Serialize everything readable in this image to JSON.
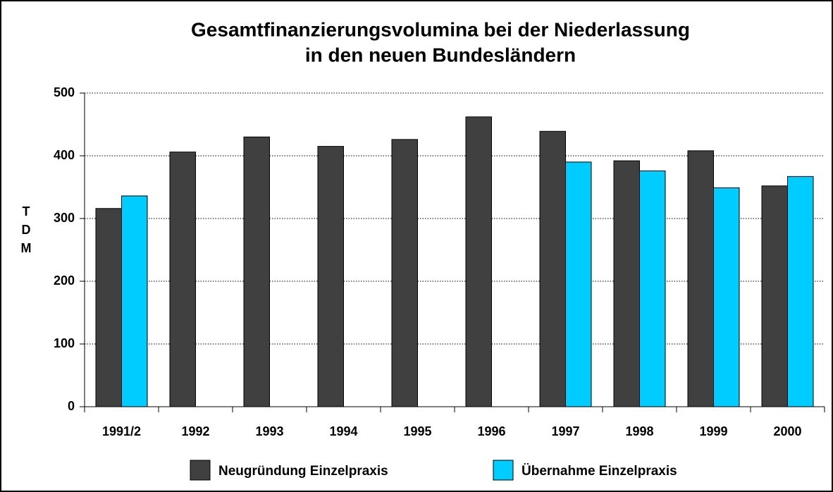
{
  "chart_data": {
    "type": "bar",
    "title": "Gesamtfinanzierungsvolumina bei der Niederlassung",
    "subtitle": "in den neuen Bundesländern",
    "y_label": "TDM",
    "categories": [
      "1991/2",
      "1992",
      "1993",
      "1994",
      "1995",
      "1996",
      "1997",
      "1998",
      "1999",
      "2000"
    ],
    "series": [
      {
        "name": "Neugründung Einzelpraxis",
        "color": "#404040",
        "values": [
          316,
          406,
          430,
          415,
          426,
          462,
          439,
          392,
          408,
          352
        ]
      },
      {
        "name": "Übernahme Einzelpraxis",
        "color": "#00ccff",
        "values": [
          336,
          null,
          null,
          null,
          null,
          null,
          390,
          376,
          349,
          367
        ]
      }
    ],
    "ylim": [
      0,
      500
    ],
    "yticks": [
      0,
      100,
      200,
      300,
      400,
      500
    ],
    "grid": true,
    "legend": "bottom"
  }
}
